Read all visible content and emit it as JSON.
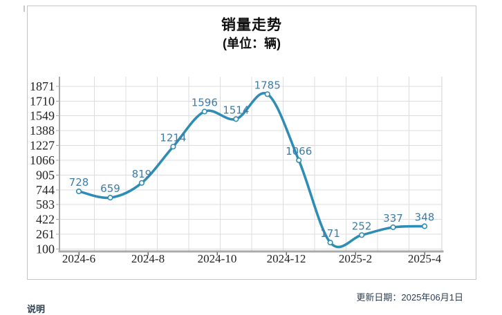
{
  "page": {
    "update_date": "更新日期：2025年06月1日",
    "note": "说明"
  },
  "chart_data": {
    "type": "line",
    "title": "销量走势",
    "subtitle": "(单位：辆)",
    "values": [
      728,
      659,
      819,
      1214,
      1596,
      1514,
      1785,
      1066,
      171,
      252,
      337,
      348
    ],
    "x_tick_labels": [
      "2024-6",
      "2024-8",
      "2024-10",
      "2024-12",
      "2025-2",
      "2025-4"
    ],
    "y_ticks": [
      100,
      261,
      422,
      583,
      744,
      905,
      1066,
      1227,
      1388,
      1549,
      1710,
      1871
    ],
    "ylim": [
      100,
      1871
    ],
    "grid": true,
    "smooth": true,
    "markers": true,
    "legend": "none",
    "colors": {
      "line": "#2f8db4",
      "marker_fill": "#ffffff",
      "point_label": "#3e7ca6",
      "axis_text": "#222222",
      "grid_line": "#dcdcdc",
      "axis_line": "#a9a9a9",
      "tick_mark": "#6f6f6f",
      "footer_text": "#2c3e50"
    }
  }
}
